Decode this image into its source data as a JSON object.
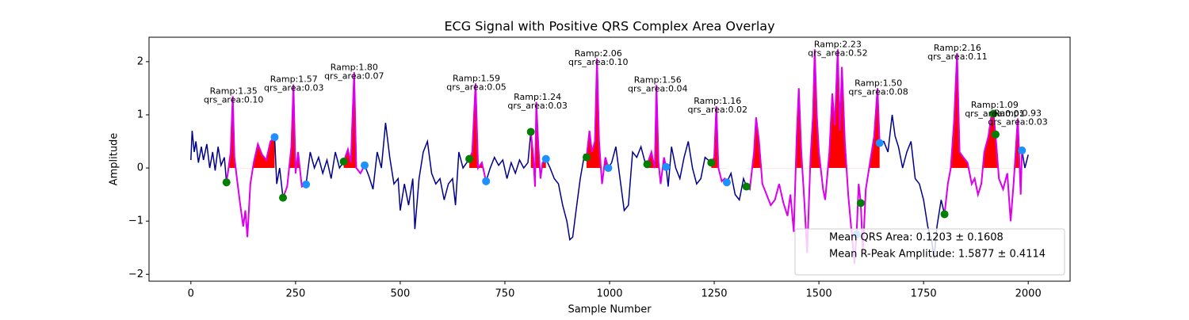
{
  "chart_data": {
    "type": "line",
    "title": "ECG Signal with Positive QRS Complex Area Overlay",
    "xlabel": "Sample Number",
    "ylabel": "Amplitude",
    "xlim": [
      -100,
      2100
    ],
    "ylim": [
      -2.13,
      2.46
    ],
    "xticks": [
      0,
      250,
      500,
      750,
      1000,
      1250,
      1500,
      1750,
      2000
    ],
    "yticks": [
      {
        "value": -2,
        "label": "−2"
      },
      {
        "value": -1,
        "label": "−1"
      },
      0,
      1,
      2
    ],
    "x": [
      0,
      3,
      8,
      12,
      18,
      25,
      30,
      38,
      45,
      52,
      58,
      65,
      72,
      80,
      85,
      90,
      95,
      100,
      104,
      110,
      118,
      125,
      130,
      135,
      142,
      150,
      160,
      170,
      180,
      190,
      200,
      205,
      212,
      220,
      230,
      240,
      245,
      250,
      256,
      265,
      275,
      285,
      295,
      305,
      315,
      325,
      335,
      345,
      355,
      365,
      375,
      382,
      390,
      395,
      405,
      415,
      425,
      435,
      445,
      455,
      465,
      475,
      485,
      495,
      500,
      510,
      520,
      530,
      535,
      545,
      555,
      565,
      575,
      585,
      595,
      605,
      615,
      625,
      632,
      640,
      650,
      665,
      672,
      680,
      686,
      695,
      705,
      715,
      725,
      735,
      745,
      755,
      765,
      775,
      785,
      795,
      805,
      812,
      818,
      822,
      825,
      830,
      835,
      840,
      848,
      858,
      868,
      878,
      888,
      898,
      905,
      912,
      920,
      930,
      940,
      945,
      952,
      958,
      965,
      970,
      975,
      982,
      990,
      997,
      1005,
      1015,
      1025,
      1035,
      1045,
      1055,
      1065,
      1075,
      1085,
      1090,
      1100,
      1108,
      1112,
      1117,
      1122,
      1130,
      1135,
      1140,
      1148,
      1158,
      1168,
      1178,
      1188,
      1198,
      1208,
      1218,
      1228,
      1243,
      1250,
      1255,
      1260,
      1268,
      1275,
      1280,
      1290,
      1300,
      1310,
      1320,
      1327,
      1335,
      1345,
      1350,
      1357,
      1365,
      1375,
      1385,
      1395,
      1405,
      1415,
      1425,
      1432,
      1440,
      1447,
      1452,
      1458,
      1465,
      1472,
      1480,
      1486,
      1490,
      1495,
      1500,
      1510,
      1515,
      1525,
      1532,
      1538,
      1545,
      1550,
      1555,
      1562,
      1570,
      1578,
      1585,
      1590,
      1595,
      1600,
      1605,
      1612,
      1620,
      1632,
      1640,
      1645,
      1655,
      1665,
      1675,
      1682,
      1690,
      1700,
      1710,
      1720,
      1730,
      1740,
      1750,
      1760,
      1770,
      1775,
      1782,
      1792,
      1800,
      1808,
      1815,
      1823,
      1830,
      1836,
      1845,
      1855,
      1865,
      1872,
      1880,
      1888,
      1895,
      1905,
      1912,
      1917,
      1922,
      1930,
      1940,
      1950,
      1958,
      1965,
      1975,
      1982,
      1985,
      1992,
      2000
    ],
    "series": [
      {
        "name": "ECG",
        "color": "#00008b",
        "values": [
          0.15,
          0.7,
          0.3,
          0.5,
          0.1,
          0.4,
          0.15,
          0.45,
          0.0,
          0.3,
          -0.05,
          0.4,
          0.05,
          0.2,
          -0.27,
          0.0,
          0.3,
          1.35,
          0.2,
          -0.2,
          -0.7,
          -1.1,
          -0.8,
          -1.3,
          -0.3,
          0.1,
          0.45,
          0.25,
          0.15,
          0.5,
          0.58,
          -0.3,
          0.0,
          -0.56,
          -0.35,
          0.4,
          1.57,
          -0.1,
          0.3,
          -0.35,
          -0.31,
          0.3,
          0.0,
          0.2,
          -0.1,
          0.15,
          -0.2,
          0.3,
          0.0,
          0.12,
          0.35,
          0.1,
          1.8,
          0.0,
          -0.1,
          0.05,
          -0.15,
          -0.4,
          0.3,
          0.0,
          0.85,
          0.2,
          -0.3,
          -0.2,
          -0.8,
          -0.3,
          -0.7,
          -0.2,
          -1.15,
          -0.2,
          0.3,
          0.5,
          -0.1,
          -0.3,
          -0.2,
          -0.6,
          -0.3,
          -0.2,
          -0.7,
          0.3,
          0.0,
          0.17,
          0.3,
          1.59,
          0.0,
          0.1,
          -0.25,
          0.0,
          0.2,
          0.05,
          0.15,
          -0.2,
          0.1,
          -0.1,
          0.15,
          0.0,
          0.1,
          0.68,
          0.2,
          -0.35,
          1.24,
          0.4,
          -0.2,
          0.1,
          0.17,
          0.0,
          -0.2,
          -0.3,
          -0.7,
          -1.0,
          -1.35,
          -1.3,
          -0.8,
          -0.2,
          0.25,
          0.2,
          0.7,
          0.3,
          0.5,
          2.06,
          0.5,
          -0.3,
          0.2,
          0.0,
          0.1,
          0.4,
          -0.2,
          -0.8,
          -0.7,
          0.3,
          0.2,
          0.4,
          0.1,
          0.07,
          0.3,
          0.0,
          1.56,
          0.1,
          -0.3,
          0.2,
          0.02,
          -0.35,
          0.4,
          0.0,
          -0.2,
          0.2,
          0.5,
          0.0,
          -0.3,
          -0.2,
          0.2,
          0.1,
          0.2,
          1.16,
          0.0,
          -0.25,
          -0.2,
          -0.27,
          -0.1,
          -0.5,
          -0.6,
          -0.2,
          -0.35,
          -0.4,
          0.3,
          0.95,
          0.5,
          -0.3,
          -0.5,
          -0.7,
          -0.6,
          -0.3,
          -0.65,
          -0.9,
          -0.5,
          -1.2,
          0.6,
          1.5,
          0.3,
          -0.6,
          -1.6,
          0.2,
          1.0,
          2.23,
          1.0,
          0.3,
          -0.4,
          -0.6,
          0.3,
          1.4,
          0.8,
          2.23,
          0.7,
          1.9,
          0.5,
          -0.5,
          -1.2,
          -1.8,
          -1.25,
          -0.3,
          -0.66,
          -1.6,
          -0.4,
          0.0,
          0.6,
          1.5,
          0.47,
          0.5,
          0.3,
          1.0,
          0.6,
          0.4,
          0.0,
          0.3,
          0.5,
          -0.2,
          -0.3,
          -0.6,
          -1.1,
          -1.4,
          -1.7,
          -1.1,
          -0.6,
          -0.87,
          -0.3,
          0.0,
          0.9,
          2.16,
          0.3,
          0.2,
          0.1,
          -0.3,
          -0.2,
          -0.5,
          -0.3,
          0.3,
          0.6,
          1.0,
          1.02,
          0.63,
          -0.2,
          -0.4,
          -0.1,
          -1.0,
          -0.3,
          0.93,
          -0.5,
          0.33,
          0.0,
          0.25
        ]
      }
    ],
    "qrs_color": "#dd00ee",
    "area_color": "#ff0000",
    "qrs_windows": [
      [
        85,
        200
      ],
      [
        220,
        275
      ],
      [
        365,
        415
      ],
      [
        665,
        705
      ],
      [
        812,
        848
      ],
      [
        945,
        997
      ],
      [
        1090,
        1135
      ],
      [
        1243,
        1280
      ],
      [
        1327,
        1600
      ],
      [
        1600,
        1645
      ],
      [
        1800,
        1985
      ]
    ],
    "points": [
      {
        "name": "onset",
        "color": "#008000",
        "x": [
          85,
          220,
          365,
          665,
          812,
          945,
          1090,
          1243,
          1327,
          1600,
          1800,
          1917,
          1922
        ],
        "values": [
          -0.27,
          -0.56,
          0.12,
          0.17,
          0.68,
          0.2,
          0.07,
          0.1,
          -0.35,
          -0.66,
          -0.87,
          1.02,
          0.63
        ]
      },
      {
        "name": "offset",
        "color": "#1e90ff",
        "x": [
          200,
          275,
          415,
          705,
          848,
          997,
          1135,
          1280,
          1590,
          1645,
          1985
        ],
        "values": [
          0.58,
          -0.31,
          0.05,
          -0.25,
          0.17,
          0.0,
          0.02,
          -0.27,
          -1.25,
          0.47,
          0.33
        ]
      }
    ],
    "annotations": [
      {
        "x": 102,
        "y": 1.35,
        "lines": [
          "Ramp:1.35",
          "qrs_area:0.10"
        ]
      },
      {
        "x": 246,
        "y": 1.57,
        "lines": [
          "Ramp:1.57",
          "qrs_area:0.03"
        ]
      },
      {
        "x": 390,
        "y": 1.8,
        "lines": [
          "Ramp:1.80",
          "qrs_area:0.07"
        ]
      },
      {
        "x": 682,
        "y": 1.59,
        "lines": [
          "Ramp:1.59",
          "qrs_area:0.05"
        ]
      },
      {
        "x": 828,
        "y": 1.24,
        "lines": [
          "Ramp:1.24",
          "qrs_area:0.03"
        ]
      },
      {
        "x": 973,
        "y": 2.06,
        "lines": [
          "Ramp:2.06",
          "qrs_area:0.10"
        ]
      },
      {
        "x": 1115,
        "y": 1.56,
        "lines": [
          "Ramp:1.56",
          "qrs_area:0.04"
        ]
      },
      {
        "x": 1258,
        "y": 1.16,
        "lines": [
          "Ramp:1.16",
          "qrs_area:0.02"
        ]
      },
      {
        "x": 1545,
        "y": 2.23,
        "lines": [
          "Ramp:2.23",
          "qrs_area:0.52"
        ]
      },
      {
        "x": 1642,
        "y": 1.5,
        "lines": [
          "Ramp:1.50",
          "qrs_area:0.08"
        ]
      },
      {
        "x": 1831,
        "y": 2.16,
        "lines": [
          "Ramp:2.16",
          "qrs_area:0.11"
        ]
      },
      {
        "x": 1920,
        "y": 1.09,
        "lines": [
          "Ramp:1.09",
          "qrs_area:0.01"
        ]
      },
      {
        "x": 1975,
        "y": 0.93,
        "lines": [
          "Ramp:0.93",
          "qrs_area:0.03"
        ]
      }
    ],
    "legend": [
      "Mean QRS Area: 0.1203 ± 0.1608",
      "Mean R-Peak Amplitude: 1.5877 ± 0.4114"
    ],
    "legend_position": "lower right"
  }
}
